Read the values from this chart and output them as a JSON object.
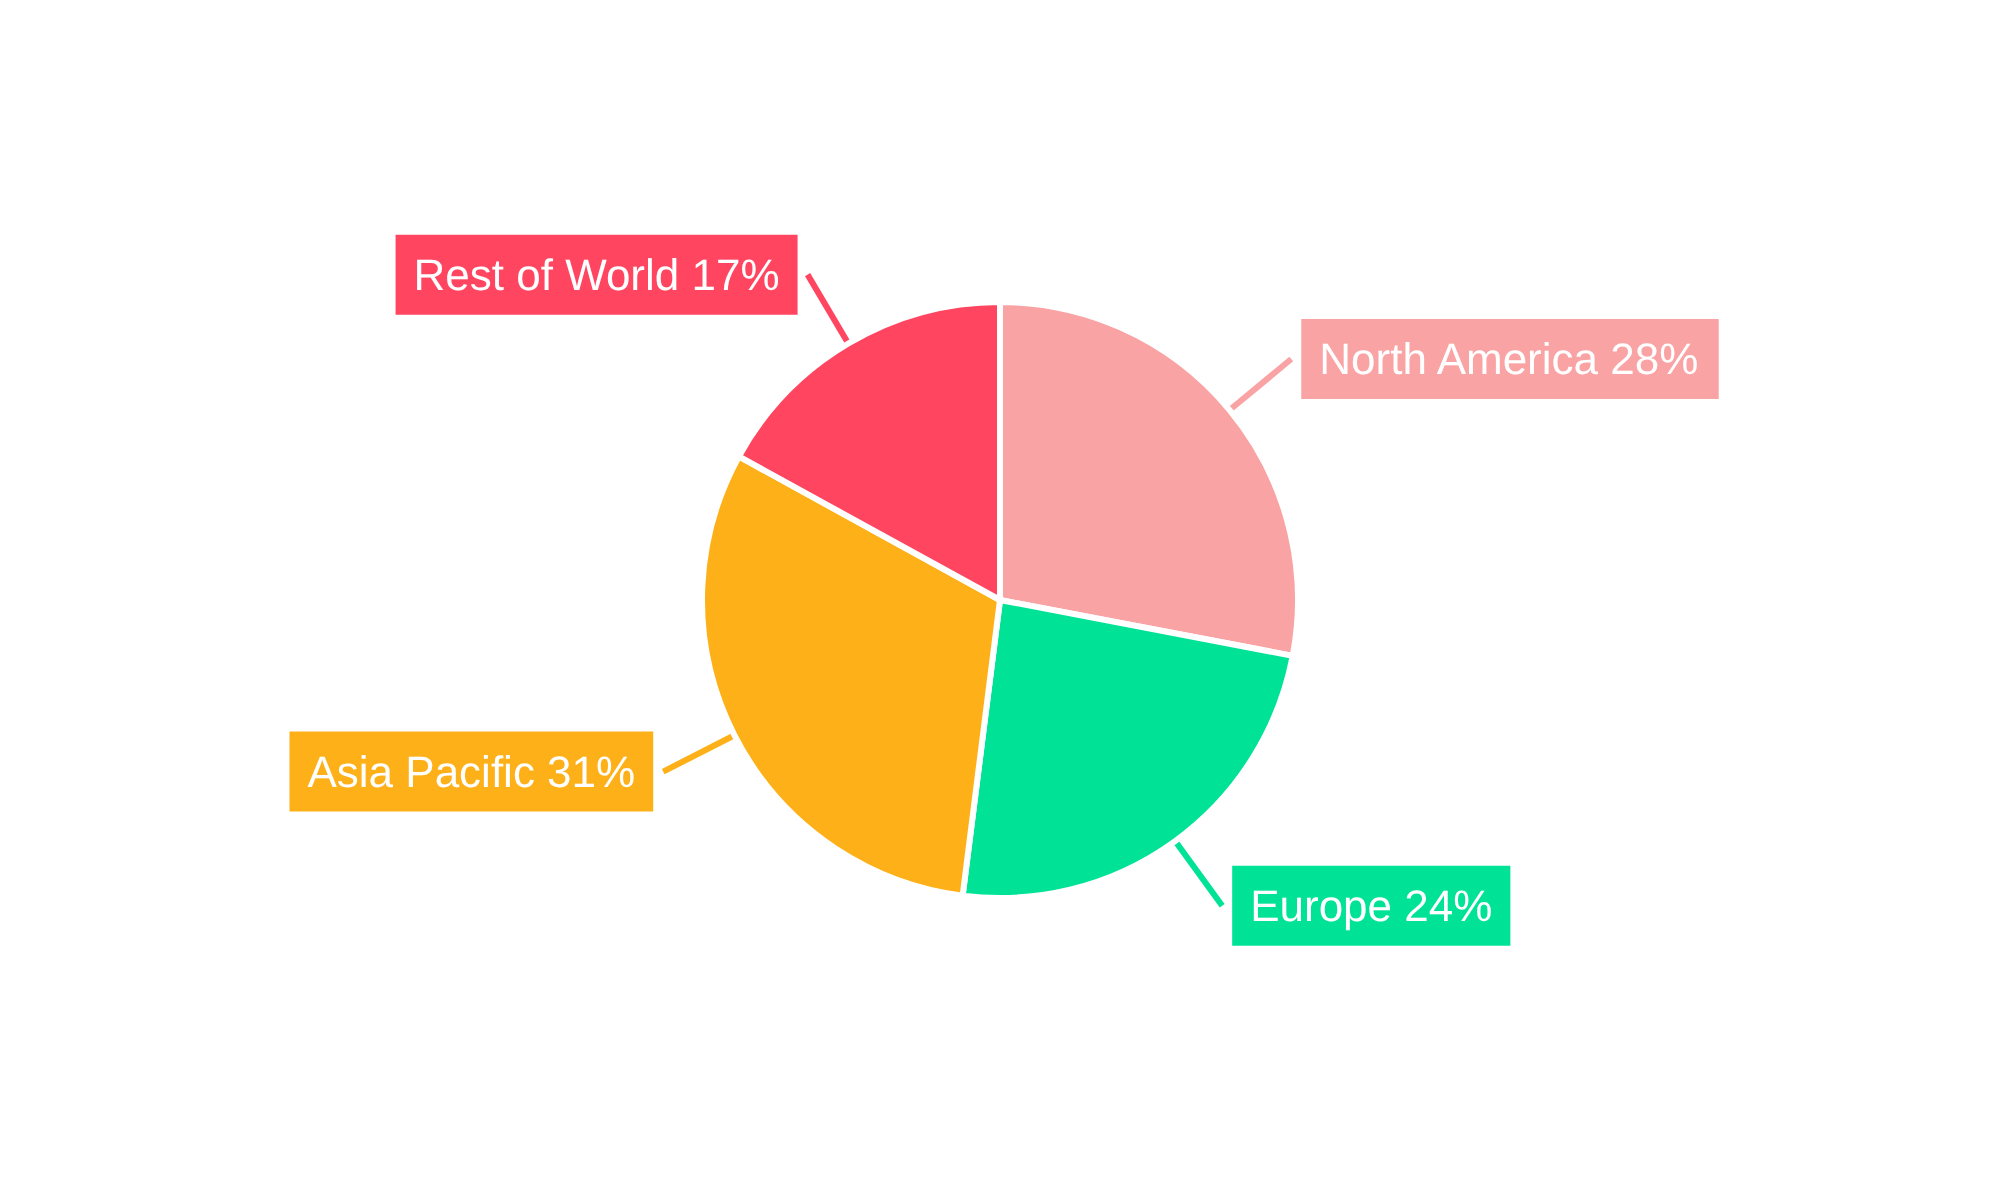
{
  "chart_data": {
    "type": "pie",
    "categories": [
      "North America",
      "Europe",
      "Asia Pacific",
      "Rest of World"
    ],
    "values": [
      28,
      24,
      31,
      17
    ],
    "colors": [
      "#f9a3a4",
      "#00e396",
      "#feb019",
      "#ff4560"
    ],
    "value_labels": [
      "28%",
      "24%",
      "31%",
      "17%"
    ],
    "legend": false
  }
}
